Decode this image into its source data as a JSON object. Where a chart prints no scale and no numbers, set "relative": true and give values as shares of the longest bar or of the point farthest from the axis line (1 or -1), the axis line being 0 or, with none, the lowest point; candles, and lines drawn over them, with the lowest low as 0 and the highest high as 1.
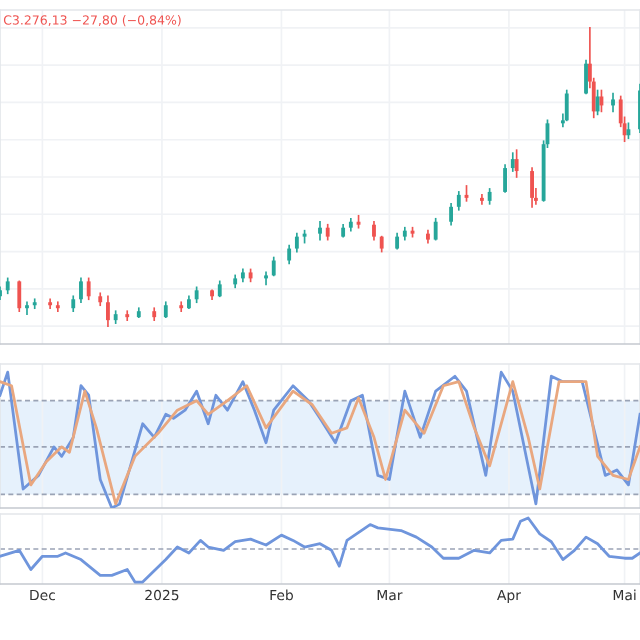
{
  "chart_data": [
    {
      "type": "candlestick",
      "relative": true,
      "annotations": [
        "C3.276,13 −27,80 (−0,84%)"
      ],
      "grid": true,
      "xlim": [
        "2024-11-20",
        "2025-05-05"
      ],
      "x": [
        "2024-11-20",
        "2024-11-22",
        "2024-11-25",
        "2024-11-27",
        "2024-11-29",
        "2024-12-03",
        "2024-12-05",
        "2024-12-09",
        "2024-12-11",
        "2024-12-13",
        "2024-12-16",
        "2024-12-18",
        "2024-12-20",
        "2024-12-23",
        "2024-12-26",
        "2024-12-30",
        "2025-01-02",
        "2025-01-06",
        "2025-01-08",
        "2025-01-10",
        "2025-01-14",
        "2025-01-16",
        "2025-01-20",
        "2025-01-22",
        "2025-01-24",
        "2025-01-28",
        "2025-01-30",
        "2025-02-03",
        "2025-02-05",
        "2025-02-07",
        "2025-02-11",
        "2025-02-13",
        "2025-02-17",
        "2025-02-19",
        "2025-02-21",
        "2025-02-25",
        "2025-02-27",
        "2025-03-03",
        "2025-03-05",
        "2025-03-07",
        "2025-03-11",
        "2025-03-13",
        "2025-03-17",
        "2025-03-19",
        "2025-03-21",
        "2025-03-25",
        "2025-03-27",
        "2025-03-31",
        "2025-04-02",
        "2025-04-03",
        "2025-04-07",
        "2025-04-08",
        "2025-04-10",
        "2025-04-11",
        "2025-04-15",
        "2025-04-16",
        "2025-04-21",
        "2025-04-22",
        "2025-04-23",
        "2025-04-24",
        "2025-04-25",
        "2025-04-28",
        "2025-04-30",
        "2025-05-01",
        "2025-05-02",
        "2025-05-05"
      ],
      "ohlc": [
        [
          0.1,
          0.13,
          0.09,
          0.12
        ],
        [
          0.12,
          0.16,
          0.11,
          0.15
        ],
        [
          0.15,
          0.15,
          0.05,
          0.06
        ],
        [
          0.06,
          0.08,
          0.04,
          0.07
        ],
        [
          0.07,
          0.09,
          0.06,
          0.08
        ],
        [
          0.08,
          0.09,
          0.06,
          0.07
        ],
        [
          0.07,
          0.08,
          0.05,
          0.06
        ],
        [
          0.06,
          0.1,
          0.05,
          0.09
        ],
        [
          0.09,
          0.16,
          0.08,
          0.15
        ],
        [
          0.15,
          0.16,
          0.09,
          0.1
        ],
        [
          0.1,
          0.11,
          0.07,
          0.08
        ],
        [
          0.08,
          0.1,
          0.0,
          0.02
        ],
        [
          0.02,
          0.05,
          0.01,
          0.04
        ],
        [
          0.04,
          0.05,
          0.02,
          0.03
        ],
        [
          0.03,
          0.06,
          0.03,
          0.05
        ],
        [
          0.05,
          0.06,
          0.02,
          0.03
        ],
        [
          0.03,
          0.08,
          0.03,
          0.07
        ],
        [
          0.07,
          0.08,
          0.05,
          0.06
        ],
        [
          0.06,
          0.1,
          0.06,
          0.09
        ],
        [
          0.09,
          0.13,
          0.08,
          0.12
        ],
        [
          0.12,
          0.12,
          0.09,
          0.1
        ],
        [
          0.1,
          0.15,
          0.1,
          0.14
        ],
        [
          0.14,
          0.17,
          0.13,
          0.16
        ],
        [
          0.16,
          0.19,
          0.15,
          0.18
        ],
        [
          0.18,
          0.19,
          0.15,
          0.16
        ],
        [
          0.16,
          0.18,
          0.14,
          0.17
        ],
        [
          0.17,
          0.23,
          0.17,
          0.22
        ],
        [
          0.22,
          0.27,
          0.21,
          0.26
        ],
        [
          0.26,
          0.31,
          0.25,
          0.3
        ],
        [
          0.3,
          0.32,
          0.28,
          0.31
        ],
        [
          0.31,
          0.35,
          0.29,
          0.33
        ],
        [
          0.33,
          0.34,
          0.29,
          0.3
        ],
        [
          0.3,
          0.34,
          0.3,
          0.33
        ],
        [
          0.33,
          0.36,
          0.32,
          0.35
        ],
        [
          0.35,
          0.37,
          0.33,
          0.34
        ],
        [
          0.34,
          0.35,
          0.29,
          0.3
        ],
        [
          0.3,
          0.3,
          0.25,
          0.26
        ],
        [
          0.26,
          0.31,
          0.26,
          0.3
        ],
        [
          0.3,
          0.33,
          0.29,
          0.32
        ],
        [
          0.32,
          0.33,
          0.3,
          0.31
        ],
        [
          0.31,
          0.32,
          0.28,
          0.29
        ],
        [
          0.29,
          0.36,
          0.29,
          0.35
        ],
        [
          0.35,
          0.41,
          0.34,
          0.4
        ],
        [
          0.4,
          0.45,
          0.39,
          0.44
        ],
        [
          0.44,
          0.47,
          0.42,
          0.43
        ],
        [
          0.43,
          0.44,
          0.41,
          0.42
        ],
        [
          0.42,
          0.46,
          0.41,
          0.45
        ],
        [
          0.45,
          0.54,
          0.45,
          0.53
        ],
        [
          0.53,
          0.58,
          0.52,
          0.56
        ],
        [
          0.56,
          0.59,
          0.5,
          0.52
        ],
        [
          0.52,
          0.53,
          0.4,
          0.43
        ],
        [
          0.43,
          0.46,
          0.41,
          0.42
        ],
        [
          0.42,
          0.62,
          0.42,
          0.61
        ],
        [
          0.61,
          0.69,
          0.6,
          0.68
        ],
        [
          0.68,
          0.71,
          0.67,
          0.69
        ],
        [
          0.69,
          0.79,
          0.69,
          0.78
        ],
        [
          0.78,
          0.89,
          0.78,
          0.88
        ],
        [
          0.88,
          1.0,
          0.8,
          0.82
        ],
        [
          0.82,
          0.83,
          0.7,
          0.72
        ],
        [
          0.72,
          0.79,
          0.71,
          0.77
        ],
        [
          0.77,
          0.79,
          0.72,
          0.74
        ],
        [
          0.74,
          0.78,
          0.72,
          0.76
        ],
        [
          0.76,
          0.77,
          0.67,
          0.68
        ],
        [
          0.68,
          0.7,
          0.62,
          0.64
        ],
        [
          0.64,
          0.68,
          0.63,
          0.66
        ],
        [
          0.66,
          0.81,
          0.65,
          0.79
        ]
      ]
    },
    {
      "type": "line",
      "relative": true,
      "grid": "x",
      "xlim": [
        "2024-11-20",
        "2025-05-05"
      ],
      "bands": [
        {
          "axis": "y",
          "from": 0.1,
          "to": 0.79,
          "color": "#e6f1fc"
        }
      ],
      "ref_lines": [
        {
          "axis": "y",
          "value": 0.1,
          "line_style": "dashed",
          "color": "#9aa3b5"
        },
        {
          "axis": "y",
          "value": 0.45,
          "line_style": "dashed",
          "color": "#9aa3b5"
        },
        {
          "axis": "y",
          "value": 0.79,
          "line_style": "dashed",
          "color": "#9aa3b5"
        }
      ],
      "series": [
        {
          "color": "#6f95dc",
          "x": [
            "2024-11-20",
            "2024-11-22",
            "2024-11-26",
            "2024-11-30",
            "2024-12-04",
            "2024-12-06",
            "2024-12-09",
            "2024-12-11",
            "2024-12-13",
            "2024-12-16",
            "2024-12-19",
            "2024-12-21",
            "2024-12-27",
            "2024-12-30",
            "2025-01-02",
            "2025-01-04",
            "2025-01-07",
            "2025-01-10",
            "2025-01-13",
            "2025-01-15",
            "2025-01-18",
            "2025-01-22",
            "2025-01-25",
            "2025-01-28",
            "2025-01-30",
            "2025-02-04",
            "2025-02-08",
            "2025-02-11",
            "2025-02-15",
            "2025-02-19",
            "2025-02-22",
            "2025-02-26",
            "2025-03-01",
            "2025-03-05",
            "2025-03-09",
            "2025-03-13",
            "2025-03-18",
            "2025-03-21",
            "2025-03-26",
            "2025-03-30",
            "2025-04-02",
            "2025-04-08",
            "2025-04-12",
            "2025-04-15",
            "2025-04-20",
            "2025-04-26",
            "2025-04-29",
            "2025-05-02",
            "2025-05-05"
          ],
          "values": [
            0.83,
            1.0,
            0.14,
            0.24,
            0.45,
            0.38,
            0.52,
            0.9,
            0.83,
            0.21,
            0.0,
            0.03,
            0.62,
            0.52,
            0.69,
            0.66,
            0.72,
            0.86,
            0.62,
            0.83,
            0.72,
            0.93,
            0.72,
            0.48,
            0.72,
            0.9,
            0.79,
            0.66,
            0.48,
            0.79,
            0.83,
            0.24,
            0.21,
            0.86,
            0.52,
            0.86,
            0.97,
            0.86,
            0.24,
            1.0,
            0.86,
            0.03,
            0.97,
            0.93,
            0.93,
            0.24,
            0.28,
            0.17,
            0.69
          ]
        },
        {
          "color": "#e9a77f",
          "x": [
            "2024-11-20",
            "2024-11-23",
            "2024-11-28",
            "2024-12-02",
            "2024-12-06",
            "2024-12-08",
            "2024-12-12",
            "2024-12-15",
            "2024-12-20",
            "2024-12-25",
            "2024-12-31",
            "2025-01-05",
            "2025-01-10",
            "2025-01-13",
            "2025-01-18",
            "2025-01-23",
            "2025-01-28",
            "2025-02-04",
            "2025-02-09",
            "2025-02-14",
            "2025-02-18",
            "2025-02-21",
            "2025-02-25",
            "2025-02-28",
            "2025-03-05",
            "2025-03-10",
            "2025-03-15",
            "2025-03-19",
            "2025-03-23",
            "2025-03-27",
            "2025-04-02",
            "2025-04-06",
            "2025-04-09",
            "2025-04-14",
            "2025-04-21",
            "2025-04-24",
            "2025-04-28",
            "2025-05-02",
            "2025-05-05"
          ],
          "values": [
            0.93,
            0.9,
            0.17,
            0.34,
            0.45,
            0.41,
            0.86,
            0.59,
            0.03,
            0.38,
            0.55,
            0.72,
            0.79,
            0.69,
            0.79,
            0.9,
            0.59,
            0.86,
            0.76,
            0.55,
            0.59,
            0.81,
            0.52,
            0.21,
            0.72,
            0.55,
            0.9,
            0.93,
            0.59,
            0.31,
            0.93,
            0.52,
            0.14,
            0.93,
            0.93,
            0.38,
            0.24,
            0.21,
            0.45
          ]
        }
      ]
    },
    {
      "type": "line",
      "relative": true,
      "grid": "x",
      "tick_labels": "x",
      "xlim": [
        "2024-11-20",
        "2025-05-05"
      ],
      "xticks": [
        {
          "value": "2024-12-01",
          "label": "Dec"
        },
        {
          "value": "2025-01-01",
          "label": "2025"
        },
        {
          "value": "2025-02-01",
          "label": "Feb"
        },
        {
          "value": "2025-03-01",
          "label": "Mar"
        },
        {
          "value": "2025-04-01",
          "label": "Apr"
        },
        {
          "value": "2025-05-01",
          "label": "Mai"
        }
      ],
      "ref_lines": [
        {
          "axis": "y",
          "value": 0.53,
          "line_style": "dashed",
          "color": "#9aa3b5"
        }
      ],
      "series": [
        {
          "color": "#6f95dc",
          "x": [
            "2024-11-20",
            "2024-11-25",
            "2024-11-28",
            "2024-12-01",
            "2024-12-05",
            "2024-12-07",
            "2024-12-11",
            "2024-12-16",
            "2024-12-19",
            "2024-12-23",
            "2024-12-25",
            "2024-12-27",
            "2025-01-02",
            "2025-01-05",
            "2025-01-08",
            "2025-01-11",
            "2025-01-13",
            "2025-01-17",
            "2025-01-20",
            "2025-01-24",
            "2025-01-28",
            "2025-02-01",
            "2025-02-04",
            "2025-02-07",
            "2025-02-11",
            "2025-02-14",
            "2025-02-16",
            "2025-02-18",
            "2025-02-24",
            "2025-02-26",
            "2025-03-04",
            "2025-03-08",
            "2025-03-12",
            "2025-03-15",
            "2025-03-19",
            "2025-03-23",
            "2025-03-27",
            "2025-03-30",
            "2025-04-02",
            "2025-04-04",
            "2025-04-06",
            "2025-04-09",
            "2025-04-12",
            "2025-04-15",
            "2025-04-18",
            "2025-04-21",
            "2025-04-24",
            "2025-04-27",
            "2025-05-01",
            "2025-05-03",
            "2025-05-05"
          ],
          "values": [
            0.42,
            0.51,
            0.22,
            0.42,
            0.42,
            0.47,
            0.37,
            0.13,
            0.13,
            0.22,
            0.03,
            0.03,
            0.37,
            0.56,
            0.47,
            0.66,
            0.56,
            0.51,
            0.64,
            0.68,
            0.59,
            0.74,
            0.66,
            0.56,
            0.61,
            0.51,
            0.27,
            0.66,
            0.9,
            0.85,
            0.81,
            0.71,
            0.56,
            0.39,
            0.39,
            0.51,
            0.47,
            0.66,
            0.68,
            0.95,
            1.0,
            0.76,
            0.64,
            0.37,
            0.51,
            0.71,
            0.61,
            0.42,
            0.39,
            0.39,
            0.47
          ]
        }
      ]
    }
  ]
}
